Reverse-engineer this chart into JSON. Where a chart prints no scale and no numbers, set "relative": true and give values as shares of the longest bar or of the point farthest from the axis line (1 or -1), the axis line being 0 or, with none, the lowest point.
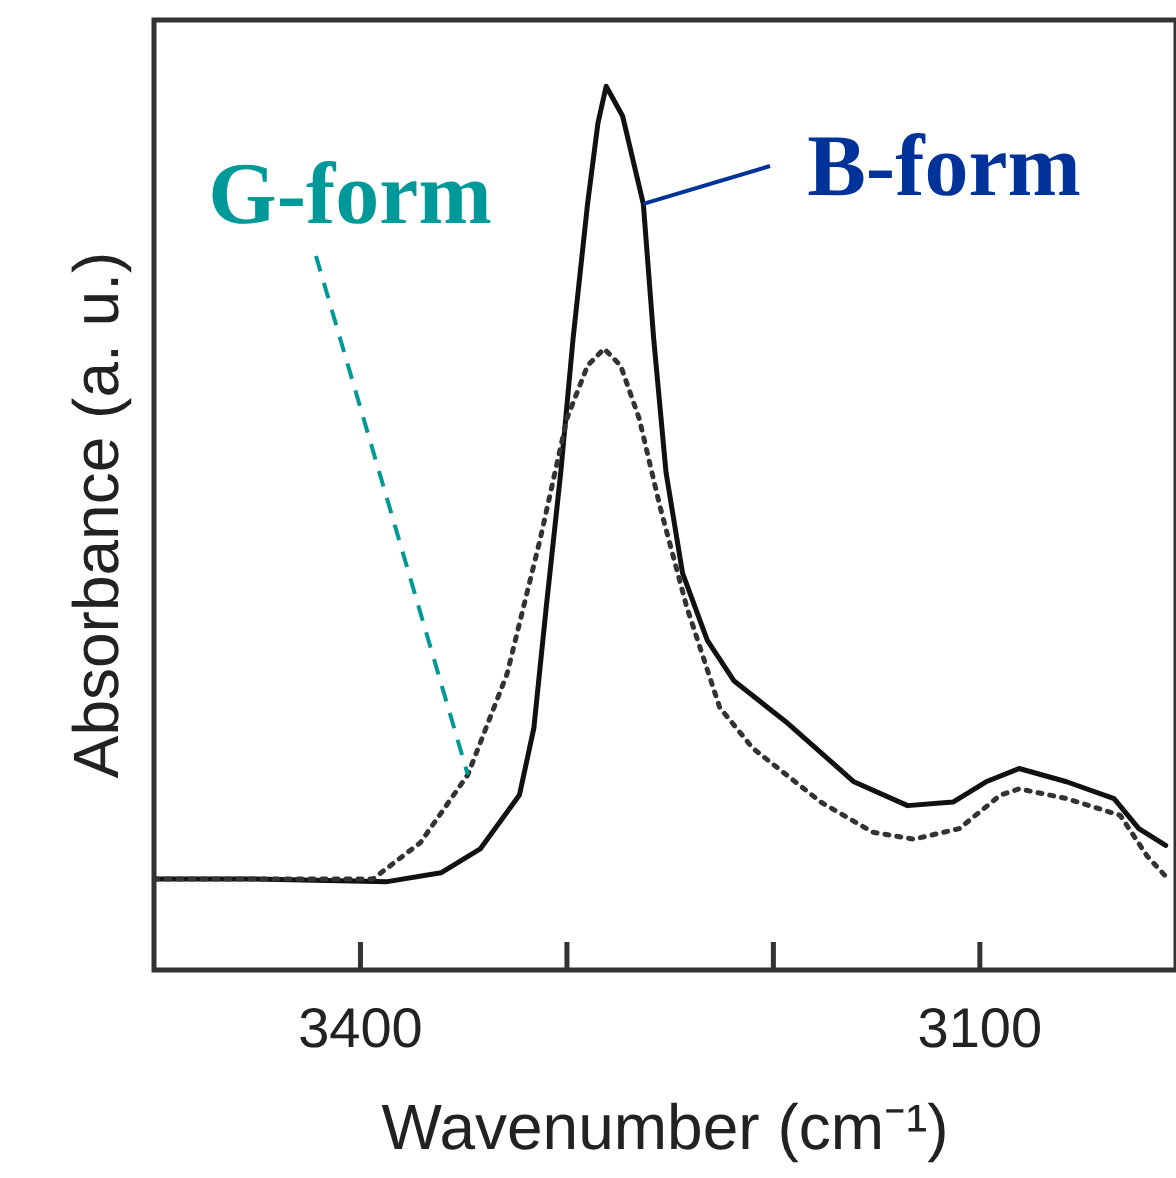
{
  "chart_data": {
    "type": "line",
    "xlabel": "Wavenumber (cm⁻¹)",
    "ylabel": "Absorbance (a. u.)",
    "relative": true,
    "legend": false,
    "grid": false,
    "marker": "none",
    "xlim": [
      3500,
      3005
    ],
    "xticks": [
      3400,
      {
        "value": 3300,
        "label": null
      },
      {
        "value": 3200,
        "label": null
      },
      3100
    ],
    "series": [
      {
        "name": "G-form",
        "color": "#333333",
        "line_style": "dotted",
        "x": [
          3500,
          3394,
          3371,
          3348,
          3329,
          3313,
          3300,
          3290,
          3282,
          3274,
          3265,
          3255,
          3242,
          3226,
          3210,
          3177,
          3152,
          3132,
          3110,
          3090,
          3081,
          3058,
          3032,
          3019,
          3010
        ],
        "values": [
          0.103,
          0.103,
          0.144,
          0.221,
          0.335,
          0.487,
          0.624,
          0.684,
          0.703,
          0.684,
          0.624,
          0.525,
          0.411,
          0.297,
          0.251,
          0.19,
          0.156,
          0.148,
          0.16,
          0.198,
          0.205,
          0.194,
          0.175,
          0.129,
          0.106
        ]
      },
      {
        "name": "B-form",
        "color": "#111111",
        "line_style": "solid",
        "x": [
          3500,
          3452,
          3387,
          3361,
          3342,
          3323,
          3316,
          3310,
          3303,
          3297,
          3290,
          3285,
          3281,
          3273,
          3263,
          3258,
          3252,
          3244,
          3232,
          3219,
          3194,
          3161,
          3135,
          3113,
          3097,
          3081,
          3058,
          3035,
          3023,
          3010
        ],
        "values": [
          0.103,
          0.103,
          0.1,
          0.11,
          0.137,
          0.198,
          0.274,
          0.411,
          0.563,
          0.715,
          0.867,
          0.958,
          1.0,
          0.966,
          0.867,
          0.715,
          0.563,
          0.449,
          0.373,
          0.327,
          0.281,
          0.213,
          0.186,
          0.19,
          0.213,
          0.228,
          0.213,
          0.194,
          0.16,
          0.141
        ]
      }
    ]
  }
}
